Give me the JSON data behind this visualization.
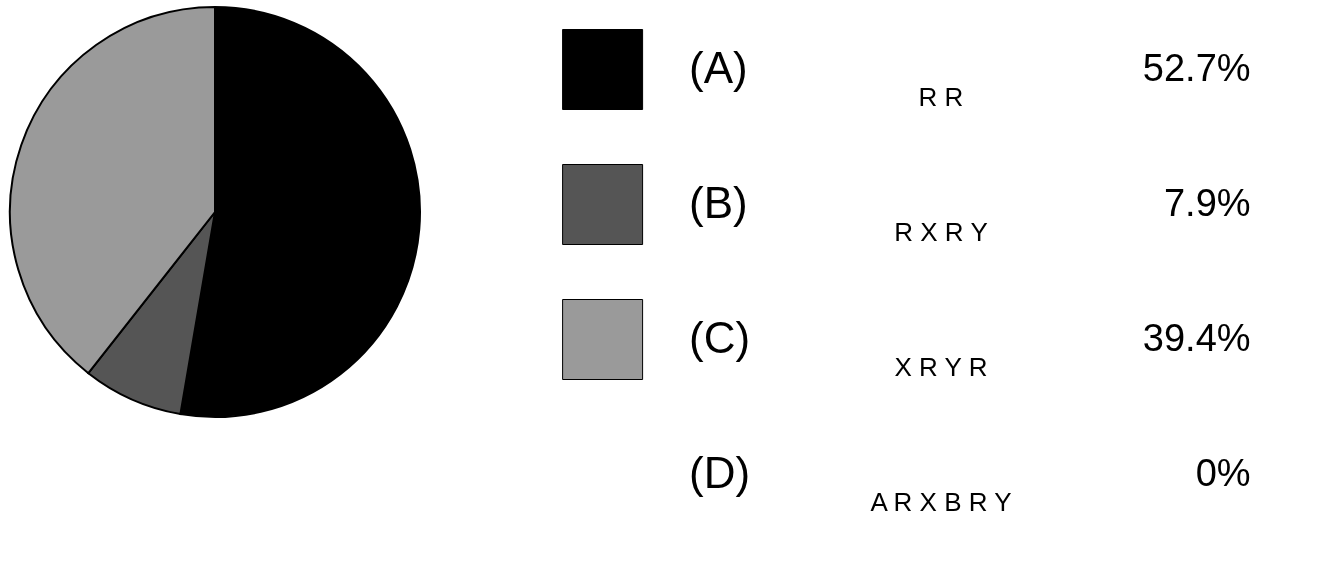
{
  "chart_data": {
    "type": "pie",
    "categories": [
      "(A)",
      "(B)",
      "(C)",
      "(D)"
    ],
    "values": [
      52.7,
      7.9,
      39.4,
      0
    ],
    "value_labels": [
      "52.7%",
      "7.9%",
      "39.4%",
      "0%"
    ],
    "colors": [
      "#000000",
      "#555555",
      "#9a9a9a",
      null
    ],
    "annotations": [
      "R R",
      "R X R Y",
      "X R Y R",
      "A R X B R Y"
    ],
    "legend": "right"
  }
}
